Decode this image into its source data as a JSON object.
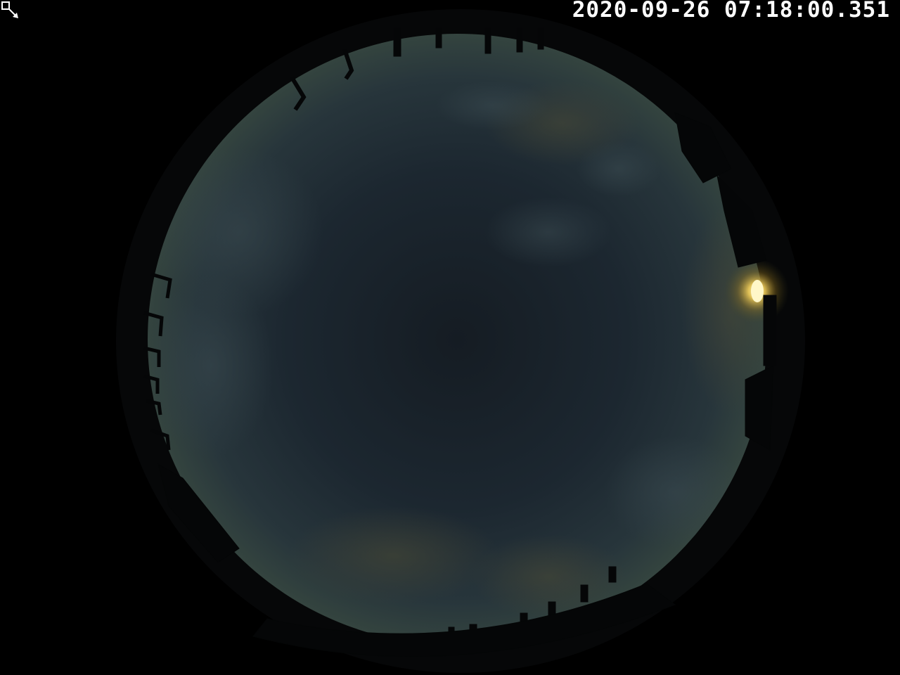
{
  "overlay": {
    "timestamp": "2020-09-26 07:18:00.351",
    "corner_icon": "expand-arrow-icon"
  },
  "scene": {
    "type": "all-sky fisheye camera image",
    "background_color": "#000000",
    "sky_color_center": "#1b232a",
    "sky_color_edge": "#2e3e42",
    "sun_color": "#fff3b0",
    "sun_glow_color": "#c89a2a",
    "foreground_color": "#050607"
  }
}
